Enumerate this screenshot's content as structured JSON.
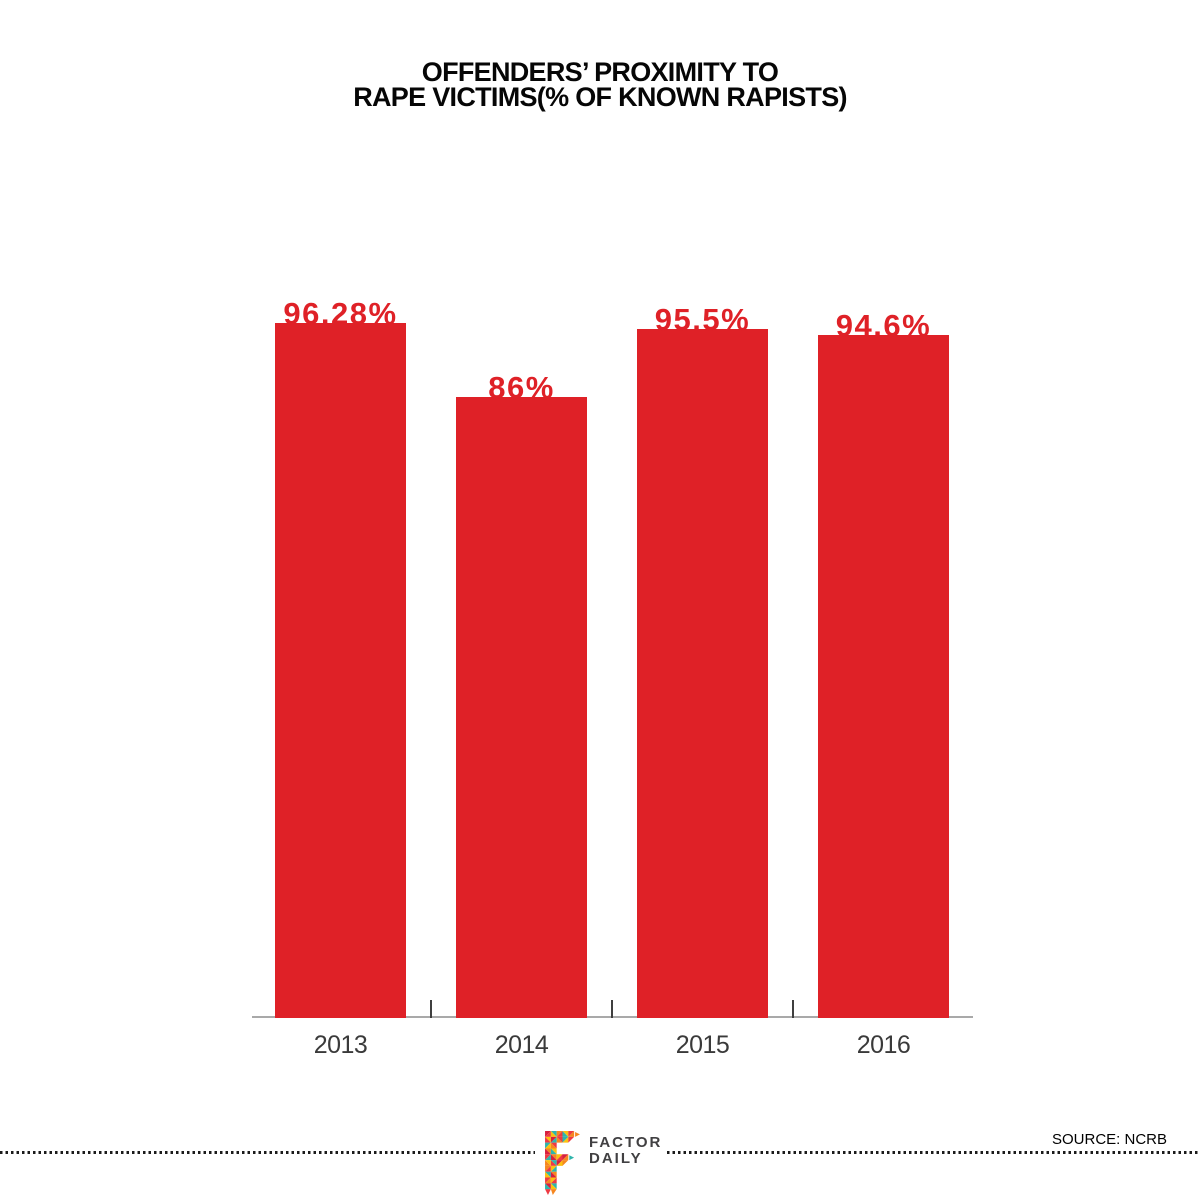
{
  "page": {
    "background": "#ffffff"
  },
  "chart_data": {
    "type": "bar",
    "title_lines": [
      "OFFENDERS’ PROXIMITY TO",
      "RAPE VICTIMS(% OF KNOWN RAPISTS)"
    ],
    "categories": [
      "2013",
      "2014",
      "2015",
      "2016"
    ],
    "values": [
      96.28,
      86,
      95.5,
      94.6
    ],
    "value_labels": [
      "96.28%",
      "86%",
      "95.5%",
      "94.6%"
    ],
    "xlabel": "",
    "ylabel": "",
    "ylim": [
      0,
      100
    ],
    "grid": false,
    "legend": false,
    "bar_color": "#df2127",
    "value_label_color": "#df2127",
    "axis_color": "#a9a9a9",
    "tick_color": "#3f3f3f",
    "category_label_color": "#3a3a3a",
    "title_color": "#060606"
  },
  "footer": {
    "source": "SOURCE: NCRB",
    "logo": {
      "icon": "factor-daily-logo-icon",
      "line1": "FACTOR",
      "line2": "DAILY",
      "text_color": "#414042",
      "palette": {
        "red": "#ee3a43",
        "crimson": "#d61f3e",
        "orange": "#f6871f",
        "yellow": "#fcc10f",
        "teal": "#2fb5ac"
      }
    }
  }
}
